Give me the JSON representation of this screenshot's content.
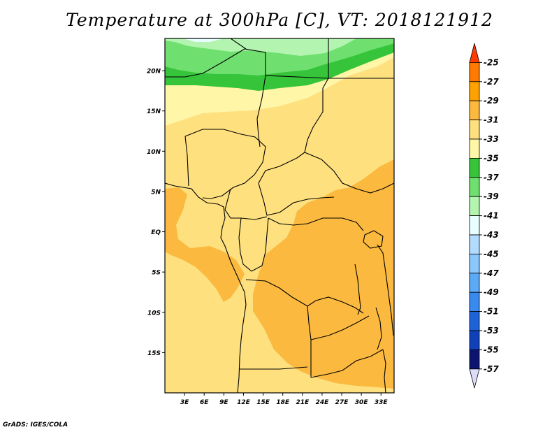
{
  "title": "Temperature at 300hPa [C], VT: 2018121912",
  "credit": "GrADS: IGES/COLA",
  "map": {
    "lon_range": [
      0,
      35
    ],
    "lat_range": [
      -20,
      24
    ],
    "lat_ticks": [
      {
        "value": 20,
        "label": "20N"
      },
      {
        "value": 15,
        "label": "15N"
      },
      {
        "value": 10,
        "label": "10N"
      },
      {
        "value": 5,
        "label": "5N"
      },
      {
        "value": 0,
        "label": "EQ"
      },
      {
        "value": -5,
        "label": "5S"
      },
      {
        "value": -10,
        "label": "10S"
      },
      {
        "value": -15,
        "label": "15S"
      }
    ],
    "lon_ticks": [
      {
        "value": 3,
        "label": "3E"
      },
      {
        "value": 6,
        "label": "6E"
      },
      {
        "value": 9,
        "label": "9E"
      },
      {
        "value": 12,
        "label": "12E"
      },
      {
        "value": 15,
        "label": "15E"
      },
      {
        "value": 18,
        "label": "18E"
      },
      {
        "value": 21,
        "label": "21E"
      },
      {
        "value": 24,
        "label": "24E"
      },
      {
        "value": 27,
        "label": "27E"
      },
      {
        "value": 30,
        "label": "30E"
      },
      {
        "value": 33,
        "label": "33E"
      }
    ]
  },
  "colorbar": {
    "levels": [
      "-25",
      "-27",
      "-29",
      "-31",
      "-33",
      "-35",
      "-37",
      "-39",
      "-41",
      "-43",
      "-45",
      "-47",
      "-49",
      "-51",
      "-53",
      "-55",
      "-57"
    ],
    "colors": [
      "#ff3c00",
      "#ff7a00",
      "#ffa100",
      "#fbb93f",
      "#fee07f",
      "#fff6a8",
      "#35c43a",
      "#6fe06f",
      "#b3f5b0",
      "#e8ffff",
      "#b2dbff",
      "#8ac8fb",
      "#5ca9f5",
      "#3a89ee",
      "#1e62d8",
      "#1041b8",
      "#0c1470",
      "#dcdcfa"
    ]
  },
  "field_colors": {
    "c33_31": "#fee07f",
    "c31_29": "#fbb93f",
    "c35_33": "#fff6a8",
    "c37_35": "#35c43a",
    "c39_37": "#6fe06f",
    "c41_39": "#b3f5b0",
    "c43_41": "#e8ffff"
  }
}
